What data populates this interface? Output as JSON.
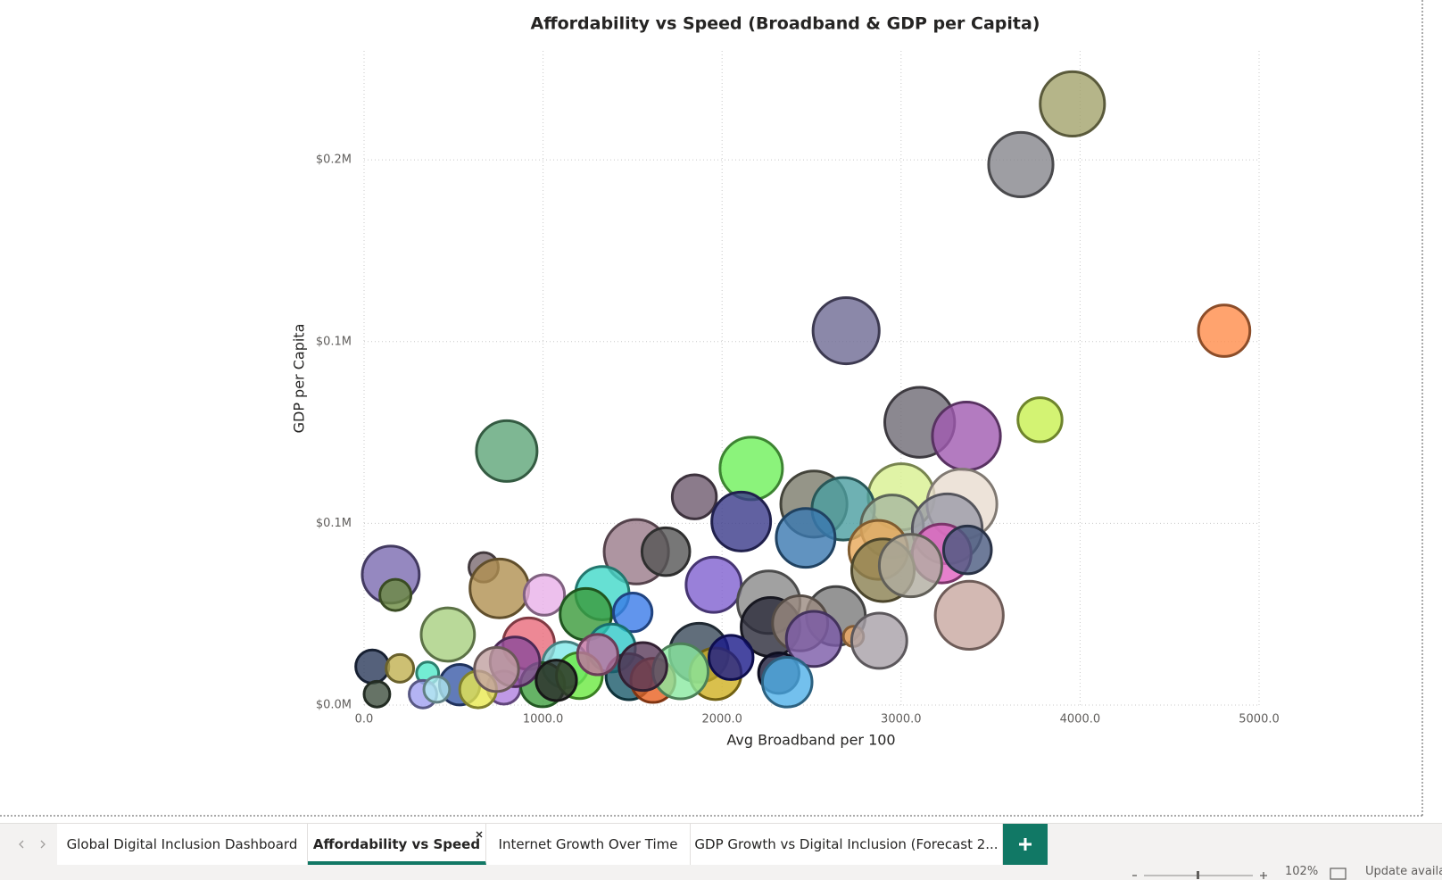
{
  "chart_data": {
    "type": "bubble",
    "title": "Affordability vs Speed (Broadband & GDP per Capita)",
    "x_label": "Avg Broadband per 100",
    "y_label": "GDP per Capita",
    "xlim": [
      0,
      5000
    ],
    "ylim": [
      0,
      180000
    ],
    "xticks": [
      {
        "value": 0,
        "label": "0.0"
      },
      {
        "value": 1000,
        "label": "1000.0"
      },
      {
        "value": 2000,
        "label": "2000.0"
      },
      {
        "value": 3000,
        "label": "3000.0"
      },
      {
        "value": 4000,
        "label": "4000.0"
      },
      {
        "value": 5000,
        "label": "5000.0"
      }
    ],
    "yticks": [
      {
        "value": 0,
        "label": "$0.0M"
      },
      {
        "value": 50000,
        "label": "$0.1M"
      },
      {
        "value": 100000,
        "label": "$0.1M"
      },
      {
        "value": 150000,
        "label": "$0.2M"
      }
    ],
    "grid": true,
    "x": [
      3957,
      3669,
      2693,
      4805,
      3104,
      3365,
      3776,
      797,
      2163,
      1845,
      3001,
      3340,
      2513,
      2677,
      2107,
      2950,
      3258,
      2467,
      1521,
      1686,
      3227,
      3371,
      2873,
      2899,
      3053,
      149,
      175,
      668,
      756,
      1007,
      1953,
      1331,
      1239,
      1501,
      2261,
      2636,
      3381,
      468,
      920,
      2271,
      2436,
      2513,
      2734,
      2878,
      1871,
      1382,
      1125,
      1963,
      2317,
      2364,
      1480,
      1614,
      1768,
      781,
      46,
      200,
      355,
      534,
      637,
      997,
      1203,
      329,
      72,
      406,
      843,
      740,
      1074,
      1558,
      2050,
      1305
    ],
    "values": [
      165400,
      148700,
      103000,
      103000,
      77800,
      74000,
      78500,
      69900,
      65100,
      57300,
      57300,
      55300,
      55300,
      54000,
      50500,
      49200,
      48500,
      46000,
      42200,
      42200,
      41700,
      42700,
      42700,
      37100,
      38400,
      35900,
      30300,
      37900,
      32100,
      30300,
      33100,
      30800,
      25000,
      25500,
      28300,
      24500,
      24700,
      19400,
      16900,
      21500,
      22500,
      18200,
      18900,
      17700,
      14400,
      15700,
      11100,
      8600,
      8800,
      6300,
      7800,
      6800,
      9300,
      4800,
      10600,
      10100,
      8800,
      5600,
      4300,
      5600,
      8100,
      3000,
      3000,
      4300,
      11900,
      9800,
      6800,
      10600,
      13100,
      13900
    ],
    "sizes": [
      35,
      35,
      36,
      28,
      38,
      37,
      24,
      33,
      34,
      24,
      36,
      38,
      36,
      34,
      32,
      34,
      38,
      32,
      35,
      26,
      32,
      26,
      32,
      34,
      34,
      31,
      17,
      16,
      32,
      22,
      30,
      29,
      28,
      21,
      34,
      32,
      37,
      29,
      28,
      32,
      30,
      30,
      11,
      30,
      32,
      26,
      25,
      28,
      22,
      27,
      25,
      24,
      30,
      18,
      18,
      15,
      12,
      22,
      20,
      24,
      25,
      15,
      14,
      14,
      27,
      24,
      22,
      26,
      24,
      22
    ],
    "colors": [
      "#a3a36b",
      "#86868c",
      "#6e6a94",
      "#ff8c4a",
      "#6e6a74",
      "#a05ab0",
      "#c8f050",
      "#5ea578",
      "#6ef05a",
      "#6e5a6e",
      "#d8f090",
      "#e8dcd0",
      "#7a7a6a",
      "#4a9ea0",
      "#3a3a8a",
      "#a8b8a0",
      "#9a9aa8",
      "#3a78b0",
      "#9a7a8a",
      "#555555",
      "#e060c0",
      "#4a5a80",
      "#e8a858",
      "#8a8050",
      "#b0aca0",
      "#7a6ab0",
      "#6a8a40",
      "#7a6a70",
      "#b09050",
      "#e8b0e8",
      "#8060d0",
      "#40d8c8",
      "#3a9a3a",
      "#3a7ae8",
      "#8a8a8a",
      "#7a7a7a",
      "#c8a8a0",
      "#a8d080",
      "#e86a7a",
      "#2a2a3a",
      "#9a8a80",
      "#7a5aa8",
      "#f0a860",
      "#a8a0a8",
      "#3a4a5a",
      "#30c8c8",
      "#80e8e8",
      "#d0b020",
      "#1a1a3a",
      "#50b0e8",
      "#1a5a6a",
      "#e86020",
      "#8ae8a0",
      "#b080e0",
      "#2a3a5a",
      "#c0b050",
      "#50e8c8",
      "#3a5aa8",
      "#e8e850",
      "#40a040",
      "#6ae840",
      "#a0a0f0",
      "#405040",
      "#b0e8f0",
      "#8a4a9a",
      "#c0a0a0",
      "#2a2a2a",
      "#5a3a5a",
      "#1a1a8a",
      "#c070a0"
    ]
  },
  "tabs": [
    "Global Digital Inclusion Dashboard",
    "Affordability vs Speed",
    "Internet Growth Over Time",
    "GDP Growth vs Digital Inclusion (Forecast 2..."
  ],
  "status": {
    "zoom": "102%",
    "message": "Update availa"
  }
}
